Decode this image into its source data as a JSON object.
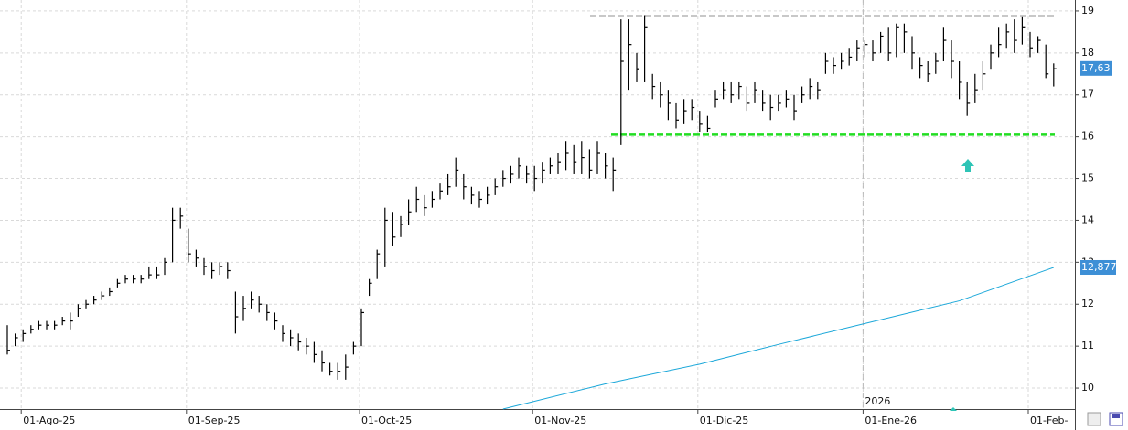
{
  "chart_data": {
    "type": "ohlc",
    "categories": [
      null,
      null,
      "01-Ago-25",
      null,
      null,
      null,
      null,
      null,
      null,
      null,
      null,
      null,
      null,
      null,
      null,
      null,
      null,
      null,
      null,
      null,
      null,
      null,
      null,
      "01-Sep-25",
      null,
      null,
      null,
      null,
      null,
      null,
      null,
      null,
      null,
      null,
      null,
      null,
      null,
      null,
      null,
      null,
      null,
      null,
      null,
      null,
      null,
      "01-Oct-25",
      null,
      null,
      null,
      null,
      null,
      null,
      null,
      null,
      null,
      null,
      null,
      null,
      null,
      null,
      null,
      null,
      null,
      null,
      null,
      null,
      null,
      "01-Nov-25",
      null,
      null,
      null,
      null,
      null,
      null,
      null,
      null,
      null,
      null,
      null,
      null,
      null,
      null,
      null,
      null,
      null,
      null,
      null,
      null,
      "01-Dic-25",
      null,
      null,
      null,
      null,
      null,
      null,
      null,
      null,
      null,
      null,
      null,
      null,
      null,
      null,
      null,
      null,
      null,
      null,
      null,
      null,
      "01-Ene-26",
      null,
      null,
      null,
      null,
      null,
      null,
      null,
      null,
      null,
      null,
      null,
      null,
      null,
      null,
      null,
      null,
      null,
      null,
      null,
      null,
      "01-Feb-",
      null,
      null,
      null
    ],
    "high": [
      11.5,
      11.3,
      11.4,
      11.5,
      11.6,
      11.6,
      11.6,
      11.7,
      11.8,
      12.0,
      12.1,
      12.2,
      12.3,
      12.4,
      12.6,
      12.7,
      12.7,
      12.7,
      12.9,
      12.9,
      13.1,
      14.3,
      14.3,
      13.8,
      13.3,
      13.1,
      13.0,
      13.0,
      13.0,
      12.3,
      12.2,
      12.3,
      12.2,
      12.0,
      11.8,
      11.5,
      11.4,
      11.3,
      11.2,
      11.1,
      10.9,
      10.6,
      10.6,
      10.8,
      11.1,
      11.9,
      12.6,
      13.3,
      14.3,
      14.2,
      14.1,
      14.5,
      14.8,
      14.6,
      14.7,
      14.9,
      15.1,
      15.5,
      15.1,
      14.8,
      14.7,
      14.8,
      15.0,
      15.2,
      15.3,
      15.5,
      15.3,
      15.3,
      15.4,
      15.5,
      15.6,
      15.9,
      15.8,
      15.9,
      15.7,
      15.9,
      15.6,
      15.5,
      18.8,
      18.8,
      18.0,
      18.9,
      17.5,
      17.3,
      17.1,
      16.8,
      16.9,
      16.9,
      16.6,
      16.5,
      17.1,
      17.3,
      17.3,
      17.3,
      17.2,
      17.3,
      17.1,
      17.0,
      17.0,
      17.1,
      17.0,
      17.2,
      17.4,
      17.3,
      18.0,
      17.9,
      18.0,
      18.1,
      18.3,
      18.3,
      18.3,
      18.5,
      18.6,
      18.7,
      18.7,
      18.4,
      17.9,
      17.8,
      18.0,
      18.6,
      18.3,
      17.8,
      17.3,
      17.5,
      17.8,
      18.2,
      18.6,
      18.7,
      18.8,
      18.85,
      18.5,
      18.4,
      18.2,
      17.75
    ],
    "low": [
      10.8,
      11.0,
      11.1,
      11.3,
      11.4,
      11.4,
      11.4,
      11.5,
      11.4,
      11.7,
      11.9,
      12.0,
      12.1,
      12.2,
      12.4,
      12.5,
      12.5,
      12.5,
      12.6,
      12.6,
      12.7,
      13.0,
      13.8,
      13.0,
      12.9,
      12.7,
      12.6,
      12.7,
      12.6,
      11.3,
      11.6,
      11.9,
      11.8,
      11.6,
      11.4,
      11.1,
      11.0,
      10.9,
      10.8,
      10.6,
      10.4,
      10.3,
      10.2,
      10.2,
      10.8,
      11.0,
      12.2,
      12.6,
      12.9,
      13.4,
      13.6,
      13.9,
      14.2,
      14.1,
      14.3,
      14.5,
      14.6,
      14.8,
      14.5,
      14.4,
      14.3,
      14.4,
      14.6,
      14.8,
      14.9,
      15.0,
      14.9,
      14.7,
      14.9,
      15.1,
      15.1,
      15.2,
      15.1,
      15.1,
      15.0,
      15.1,
      15.0,
      14.7,
      15.8,
      17.1,
      17.3,
      17.3,
      16.9,
      16.7,
      16.4,
      16.2,
      16.3,
      16.4,
      16.1,
      16.1,
      16.7,
      16.9,
      16.8,
      16.9,
      16.6,
      16.8,
      16.6,
      16.4,
      16.6,
      16.7,
      16.4,
      16.8,
      16.9,
      16.9,
      17.5,
      17.5,
      17.6,
      17.7,
      17.8,
      17.9,
      17.8,
      18.0,
      17.8,
      17.9,
      18.0,
      17.6,
      17.4,
      17.3,
      17.5,
      17.8,
      17.4,
      16.9,
      16.5,
      16.8,
      17.1,
      17.6,
      17.9,
      18.1,
      18.0,
      18.2,
      17.9,
      18.0,
      17.4,
      17.2
    ],
    "close": [
      10.9,
      11.2,
      11.3,
      11.4,
      11.5,
      11.5,
      11.5,
      11.6,
      11.6,
      11.9,
      12.0,
      12.1,
      12.2,
      12.3,
      12.5,
      12.6,
      12.6,
      12.6,
      12.7,
      12.7,
      13.0,
      14.0,
      14.1,
      13.2,
      13.1,
      12.9,
      12.8,
      12.9,
      12.8,
      11.7,
      11.9,
      12.1,
      12.0,
      11.8,
      11.6,
      11.3,
      11.2,
      11.1,
      11.0,
      10.8,
      10.6,
      10.4,
      10.4,
      10.5,
      11.0,
      11.8,
      12.5,
      13.2,
      14.0,
      13.6,
      13.9,
      14.2,
      14.5,
      14.3,
      14.5,
      14.7,
      14.8,
      15.2,
      14.8,
      14.6,
      14.5,
      14.6,
      14.8,
      15.0,
      15.1,
      15.3,
      15.1,
      15.0,
      15.2,
      15.3,
      15.4,
      15.6,
      15.4,
      15.5,
      15.2,
      15.6,
      15.3,
      15.2,
      17.8,
      18.2,
      17.6,
      18.6,
      17.2,
      17.0,
      16.8,
      16.4,
      16.6,
      16.7,
      16.3,
      16.2,
      16.9,
      17.1,
      17.0,
      17.2,
      16.8,
      17.1,
      16.8,
      16.7,
      16.8,
      16.9,
      16.6,
      17.0,
      17.2,
      17.1,
      17.8,
      17.7,
      17.8,
      17.9,
      18.1,
      18.2,
      18.0,
      18.4,
      18.0,
      18.6,
      18.5,
      18.0,
      17.7,
      17.5,
      17.8,
      18.3,
      17.8,
      17.3,
      16.8,
      17.1,
      17.5,
      18.0,
      18.2,
      18.5,
      18.3,
      18.6,
      18.1,
      18.3,
      17.5,
      17.63
    ],
    "color": "#000000",
    "last_price": {
      "value": 17.63,
      "label": "17,63",
      "color": "#3d8fd6"
    },
    "moving_average": {
      "color": "#1aa7d9",
      "x_index": [
        63,
        76,
        88,
        98,
        109,
        121,
        133
      ],
      "values": [
        9.5,
        10.1,
        10.57,
        11.04,
        11.54,
        12.08,
        12.877
      ],
      "last_label": "12,877"
    },
    "resistance": {
      "value": 18.88,
      "color": "#b5b5b5"
    },
    "support": {
      "value": 16.05,
      "color": "#22dd22"
    },
    "annotation": "2026",
    "ylim": [
      9.5,
      19.26
    ],
    "yticks": [
      10,
      11,
      12,
      13,
      14,
      15,
      16,
      17,
      18,
      19
    ],
    "grid": true
  }
}
